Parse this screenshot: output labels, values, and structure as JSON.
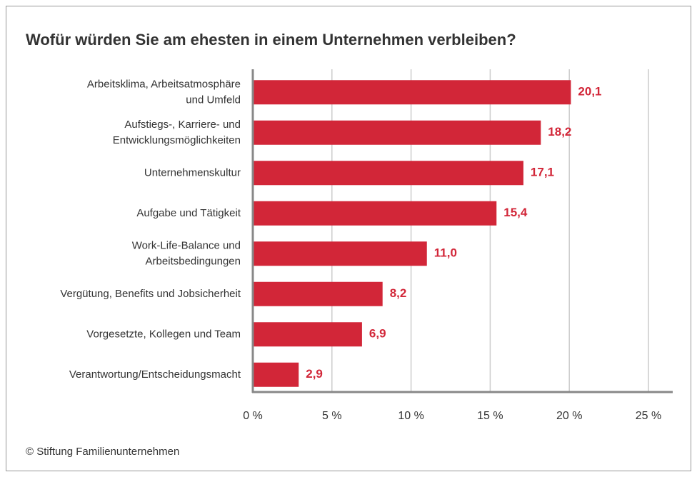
{
  "chart_data": {
    "type": "hbar",
    "title": "Wofür würden Sie am ehesten in einem Unternehmen verbleiben?",
    "source": "© Stiftung Familienunternehmen",
    "categories": [
      "Arbeitsklima, Arbeitsatmosphäre\nund Umfeld",
      "Aufstiegs-, Karriere- und\nEntwicklungsmöglichkeiten",
      "Unternehmenskultur",
      "Aufgabe und Tätigkeit",
      "Work-Life-Balance und\nArbeitsbedingungen",
      "Vergütung, Benefits und Jobsicherheit",
      "Vorgesetzte, Kollegen und Team",
      "Verantwortung/Entscheidungsmacht"
    ],
    "values": [
      20.1,
      18.2,
      17.1,
      15.4,
      11.0,
      8.2,
      6.9,
      2.9
    ],
    "value_labels": [
      "20,1",
      "18,2",
      "17,1",
      "15,4",
      "11,0",
      "8,2",
      "6,9",
      "2,9"
    ],
    "color": "#d22638",
    "xlim": [
      0,
      25
    ],
    "xticks": [
      {
        "value": 0,
        "label": "0 %"
      },
      {
        "value": 5,
        "label": "5 %"
      },
      {
        "value": 10,
        "label": "10 %"
      },
      {
        "value": 15,
        "label": "15 %"
      },
      {
        "value": 20,
        "label": "20 %"
      },
      {
        "value": 25,
        "label": "25 %"
      }
    ],
    "grid": true
  }
}
